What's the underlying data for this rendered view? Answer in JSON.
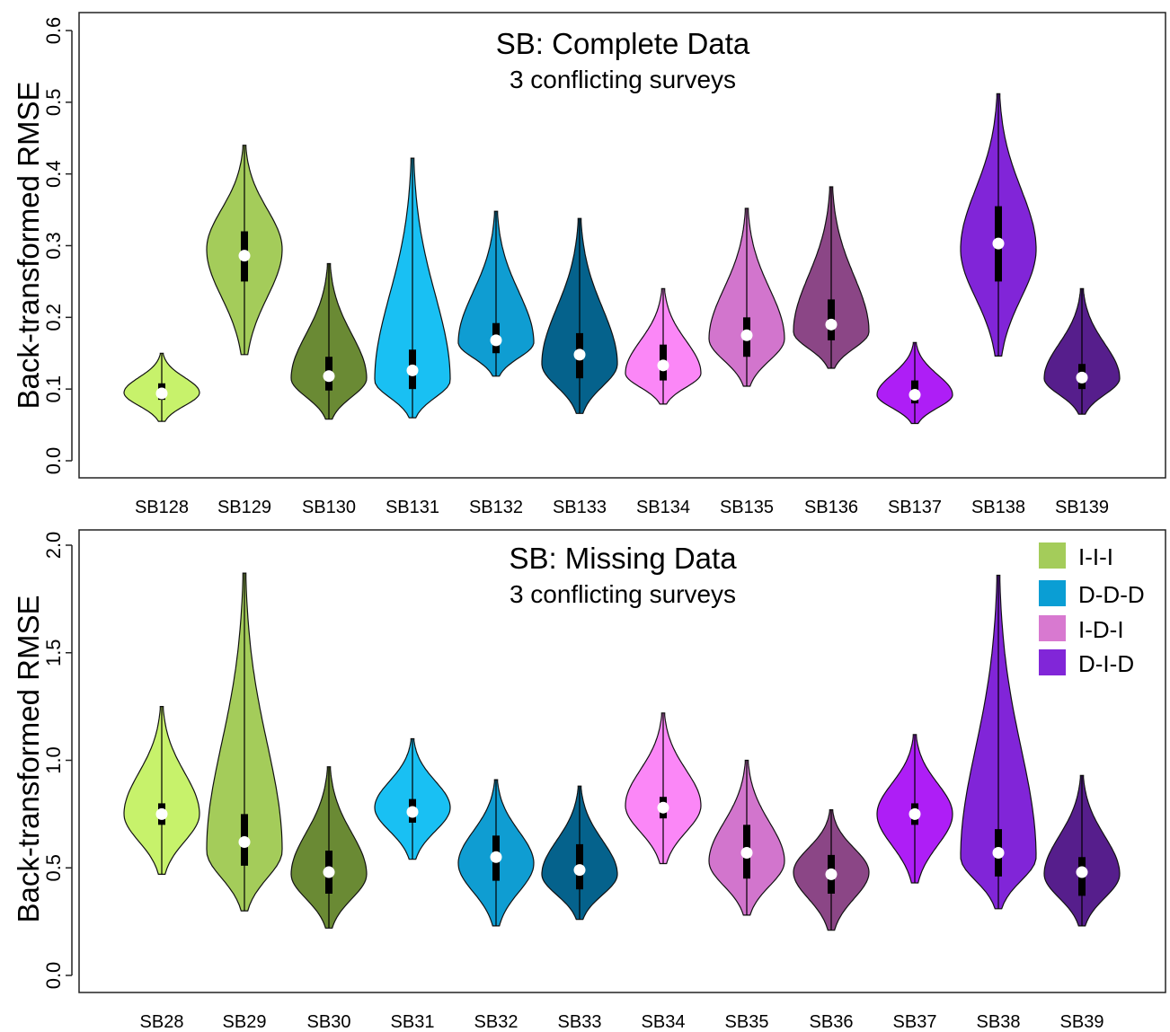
{
  "legend": {
    "items": [
      {
        "label": "I-I-I",
        "color": "#a4cc5a"
      },
      {
        "label": "D-D-D",
        "color": "#0a9ed4"
      },
      {
        "label": "I-D-I",
        "color": "#d879d0"
      },
      {
        "label": "D-I-D",
        "color": "#8126d8"
      }
    ]
  },
  "chart_data": [
    {
      "type": "violin",
      "title": "SB: Complete Data",
      "subtitle": "3 conflicting surveys",
      "ylabel": "Back-transformed RMSE",
      "ylim": [
        0.0,
        0.6
      ],
      "yticks": [
        "0.0",
        "0.1",
        "0.2",
        "0.3",
        "0.4",
        "0.5",
        "0.6"
      ],
      "ytick_values": [
        0.0,
        0.1,
        0.2,
        0.3,
        0.4,
        0.5,
        0.6
      ],
      "grid": false,
      "categories": [
        "SB128",
        "SB129",
        "SB130",
        "SB131",
        "SB132",
        "SB133",
        "SB134",
        "SB135",
        "SB136",
        "SB137",
        "SB138",
        "SB139"
      ],
      "series": [
        {
          "min": 0.055,
          "max": 0.15,
          "q1": 0.085,
          "median": 0.094,
          "q3": 0.108,
          "mode": 0.095,
          "maxw": 0.45,
          "color": "#c7f26b",
          "dark": 0
        },
        {
          "min": 0.148,
          "max": 0.44,
          "q1": 0.25,
          "median": 0.286,
          "q3": 0.32,
          "mode": 0.295,
          "maxw": 0.45,
          "color": "#a4cc5a",
          "dark": 0
        },
        {
          "min": 0.058,
          "max": 0.275,
          "q1": 0.098,
          "median": 0.118,
          "q3": 0.145,
          "mode": 0.115,
          "maxw": 0.45,
          "color": "#6a8a34",
          "dark": 0
        },
        {
          "min": 0.06,
          "max": 0.422,
          "q1": 0.1,
          "median": 0.126,
          "q3": 0.155,
          "mode": 0.112,
          "maxw": 0.45,
          "color": "#19c0f3",
          "dark": 0
        },
        {
          "min": 0.118,
          "max": 0.348,
          "q1": 0.15,
          "median": 0.168,
          "q3": 0.192,
          "mode": 0.165,
          "maxw": 0.45,
          "color": "#0f9dd2",
          "dark": 0
        },
        {
          "min": 0.066,
          "max": 0.338,
          "q1": 0.115,
          "median": 0.148,
          "q3": 0.178,
          "mode": 0.135,
          "maxw": 0.45,
          "color": "#05628c",
          "dark": 0
        },
        {
          "min": 0.079,
          "max": 0.24,
          "q1": 0.112,
          "median": 0.133,
          "q3": 0.162,
          "mode": 0.122,
          "maxw": 0.45,
          "color": "#fb87f7",
          "dark": 0
        },
        {
          "min": 0.104,
          "max": 0.352,
          "q1": 0.145,
          "median": 0.175,
          "q3": 0.2,
          "mode": 0.17,
          "maxw": 0.45,
          "color": "#d275cd",
          "dark": 0
        },
        {
          "min": 0.129,
          "max": 0.382,
          "q1": 0.168,
          "median": 0.19,
          "q3": 0.225,
          "mode": 0.18,
          "maxw": 0.45,
          "color": "#8b4686",
          "dark": 0
        },
        {
          "min": 0.052,
          "max": 0.165,
          "q1": 0.08,
          "median": 0.092,
          "q3": 0.112,
          "mode": 0.092,
          "maxw": 0.45,
          "color": "#ae1ef6",
          "dark": 0
        },
        {
          "min": 0.146,
          "max": 0.512,
          "q1": 0.25,
          "median": 0.303,
          "q3": 0.355,
          "mode": 0.295,
          "maxw": 0.45,
          "color": "#8125d8",
          "dark": 0
        },
        {
          "min": 0.065,
          "max": 0.24,
          "q1": 0.1,
          "median": 0.116,
          "q3": 0.135,
          "mode": 0.115,
          "maxw": 0.45,
          "color": "#561e8c",
          "dark": 0
        }
      ]
    },
    {
      "type": "violin",
      "title": "SB: Missing Data",
      "subtitle": "3 conflicting surveys",
      "ylabel": "Back-transformed RMSE",
      "ylim": [
        0.0,
        2.0
      ],
      "yticks": [
        "0.0",
        "0.5",
        "1.0",
        "1.5",
        "2.0"
      ],
      "ytick_values": [
        0.0,
        0.5,
        1.0,
        1.5,
        2.0
      ],
      "grid": false,
      "categories": [
        "SB28",
        "SB29",
        "SB30",
        "SB31",
        "SB32",
        "SB33",
        "SB34",
        "SB35",
        "SB36",
        "SB37",
        "SB38",
        "SB39"
      ],
      "series": [
        {
          "min": 0.47,
          "max": 1.25,
          "q1": 0.7,
          "median": 0.75,
          "q3": 0.8,
          "mode": 0.75,
          "maxw": 0.45,
          "color": "#c7f26b",
          "dark": 0
        },
        {
          "min": 0.3,
          "max": 1.87,
          "q1": 0.51,
          "median": 0.62,
          "q3": 0.75,
          "mode": 0.58,
          "maxw": 0.45,
          "color": "#a4cc5a",
          "dark": 0
        },
        {
          "min": 0.22,
          "max": 0.97,
          "q1": 0.38,
          "median": 0.48,
          "q3": 0.58,
          "mode": 0.47,
          "maxw": 0.45,
          "color": "#6a8a34",
          "dark": 0
        },
        {
          "min": 0.54,
          "max": 1.1,
          "q1": 0.71,
          "median": 0.76,
          "q3": 0.82,
          "mode": 0.78,
          "maxw": 0.45,
          "color": "#19c0f3",
          "dark": 0
        },
        {
          "min": 0.23,
          "max": 0.91,
          "q1": 0.44,
          "median": 0.55,
          "q3": 0.65,
          "mode": 0.52,
          "maxw": 0.45,
          "color": "#0f9dd2",
          "dark": 0
        },
        {
          "min": 0.26,
          "max": 0.88,
          "q1": 0.4,
          "median": 0.49,
          "q3": 0.61,
          "mode": 0.47,
          "maxw": 0.45,
          "color": "#05628c",
          "dark": 0
        },
        {
          "min": 0.52,
          "max": 1.22,
          "q1": 0.73,
          "median": 0.78,
          "q3": 0.83,
          "mode": 0.79,
          "maxw": 0.45,
          "color": "#fb87f7",
          "dark": 0
        },
        {
          "min": 0.28,
          "max": 1.0,
          "q1": 0.45,
          "median": 0.57,
          "q3": 0.7,
          "mode": 0.53,
          "maxw": 0.45,
          "color": "#d275cd",
          "dark": 0
        },
        {
          "min": 0.21,
          "max": 0.77,
          "q1": 0.38,
          "median": 0.47,
          "q3": 0.56,
          "mode": 0.48,
          "maxw": 0.45,
          "color": "#8b4686",
          "dark": 0
        },
        {
          "min": 0.43,
          "max": 1.12,
          "q1": 0.7,
          "median": 0.75,
          "q3": 0.8,
          "mode": 0.75,
          "maxw": 0.45,
          "color": "#ae1ef6",
          "dark": 0
        },
        {
          "min": 0.31,
          "max": 1.86,
          "q1": 0.46,
          "median": 0.57,
          "q3": 0.68,
          "mode": 0.55,
          "maxw": 0.45,
          "color": "#8125d8",
          "dark": 0
        },
        {
          "min": 0.23,
          "max": 0.93,
          "q1": 0.37,
          "median": 0.48,
          "q3": 0.55,
          "mode": 0.47,
          "maxw": 0.45,
          "color": "#561e8c",
          "dark": 0
        }
      ]
    }
  ]
}
